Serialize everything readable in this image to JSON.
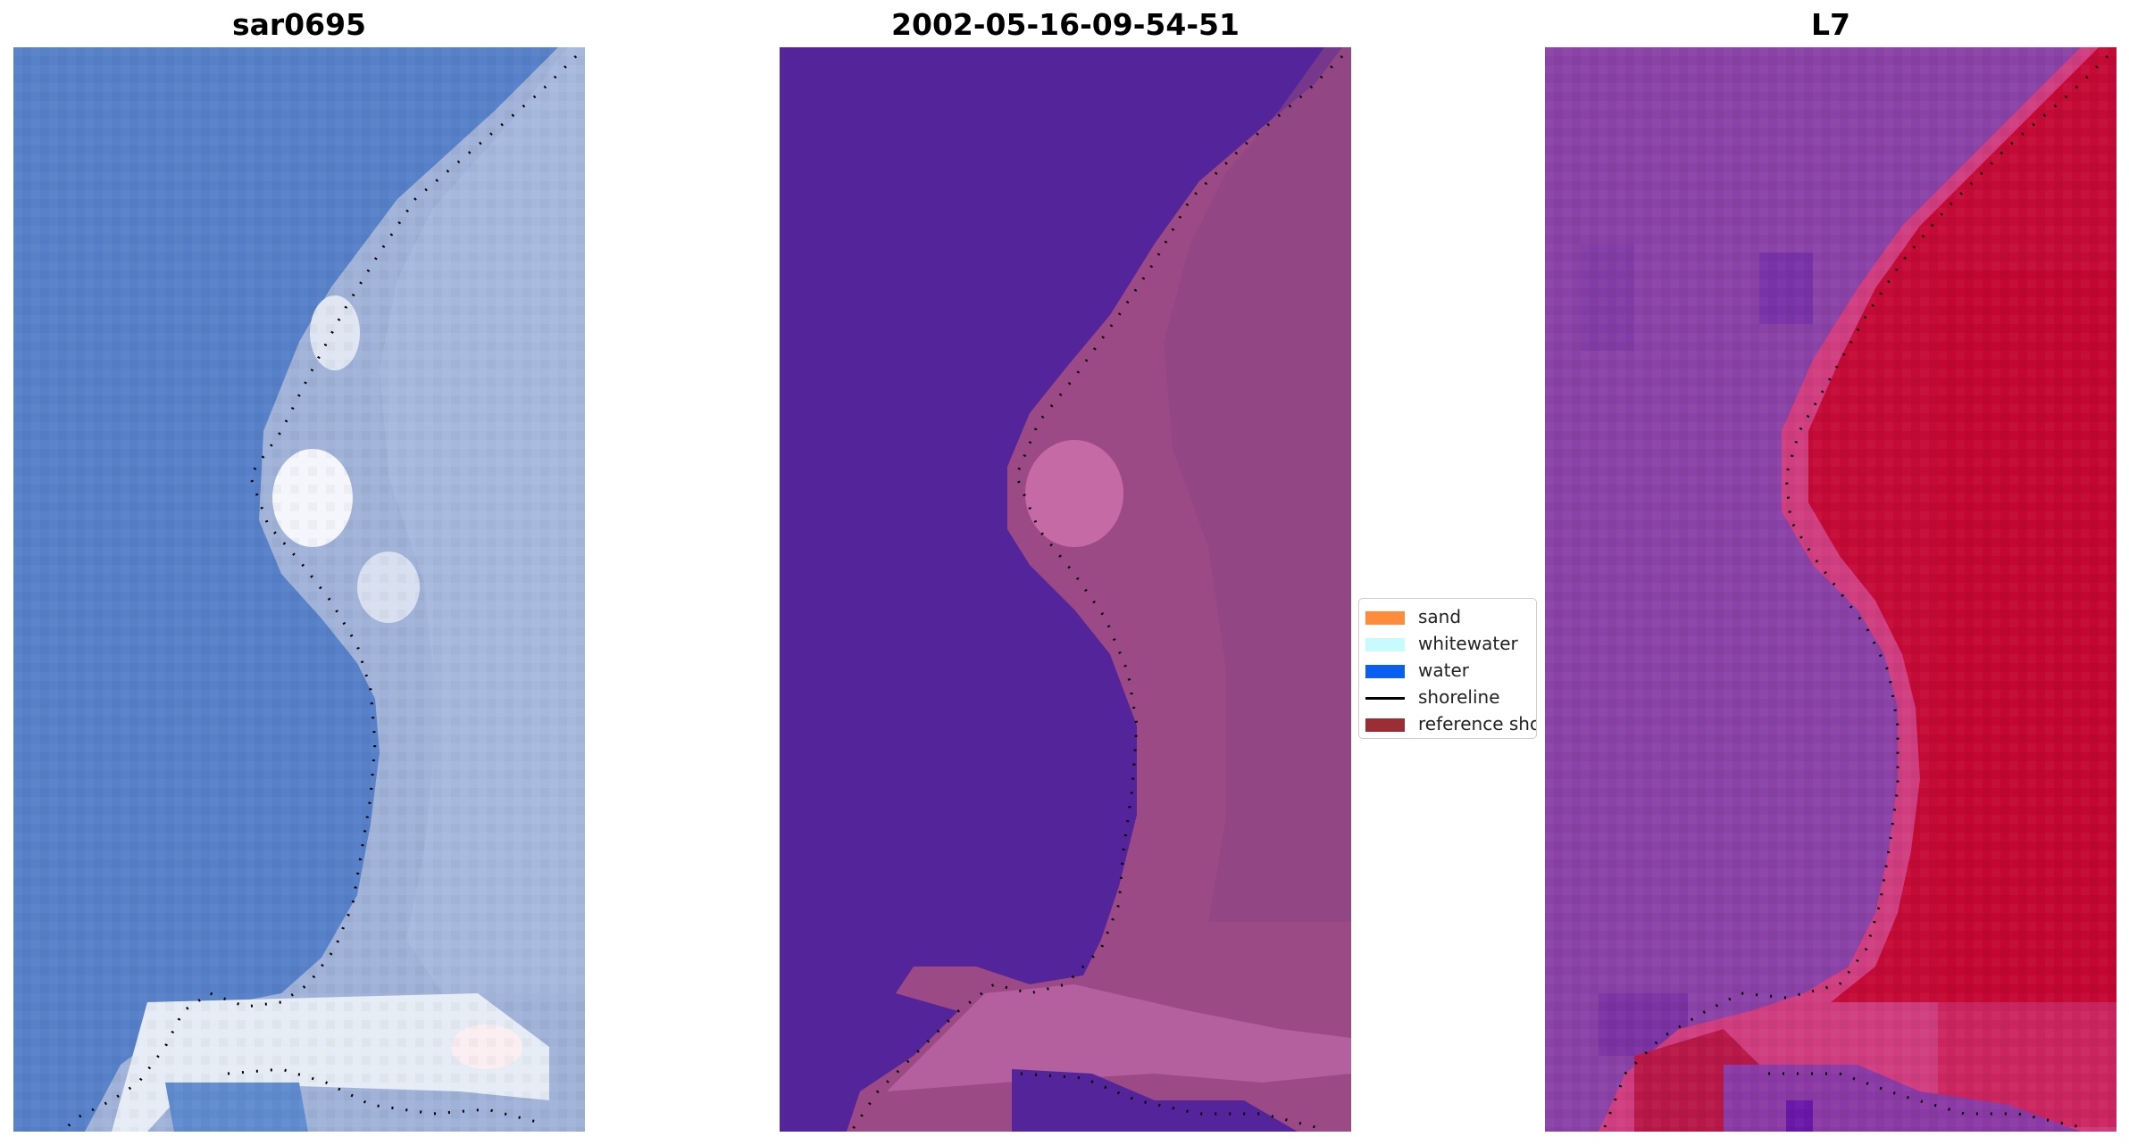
{
  "panels": [
    {
      "title": "sar0695"
    },
    {
      "title": "2002-05-16-09-54-51"
    },
    {
      "title": "L7"
    }
  ],
  "legend": {
    "items": [
      {
        "label": "sand",
        "type": "patch",
        "color": "#ff8c3c"
      },
      {
        "label": "whitewater",
        "type": "patch",
        "color": "#c8fcfc"
      },
      {
        "label": "water",
        "type": "patch",
        "color": "#0a5ff0"
      },
      {
        "label": "shoreline",
        "type": "line",
        "color": "#000000"
      },
      {
        "label": "reference shoreline",
        "type": "patch",
        "color": "#9b2d36"
      }
    ]
  },
  "colors": {
    "ocean_rgb": "#5680c8",
    "land_rgb": "#a4b4d8",
    "surf_rgb": "#f2f6fb",
    "water_class": "#54259a",
    "land_class": "#9c4a86",
    "sand_pink": "#c66aa6",
    "ndwi_water": "#8a42a6",
    "ndwi_land": "#c40a36",
    "ndwi_edge": "#d03e80"
  }
}
